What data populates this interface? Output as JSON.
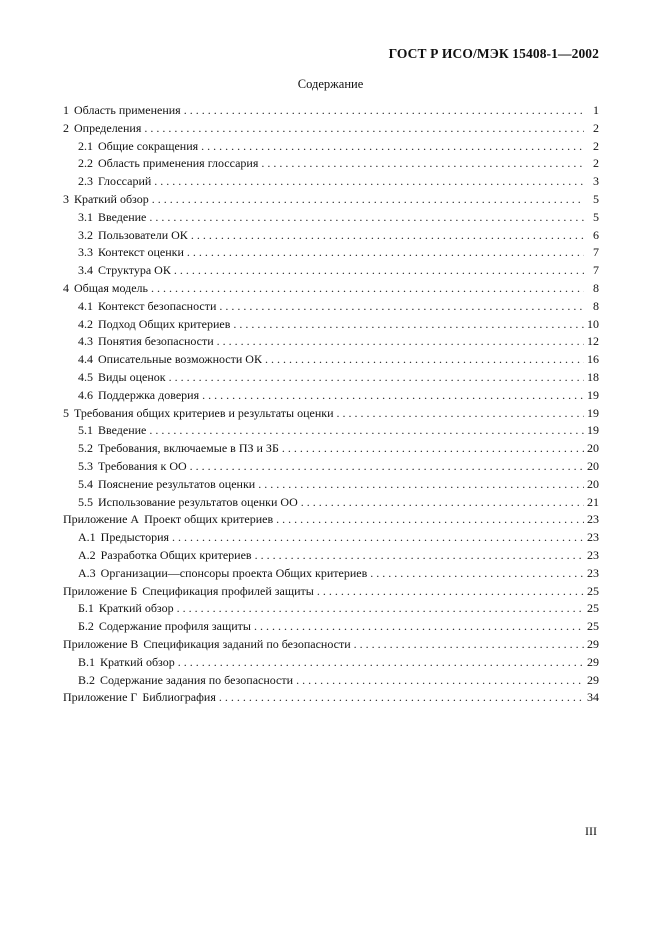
{
  "header": "ГОСТ Р ИСО/МЭК 15408-1—2002",
  "title": "Содержание",
  "toc": [
    {
      "num": "1",
      "label": "Область применения",
      "page": "1",
      "level": 0
    },
    {
      "num": "2",
      "label": "Определения",
      "page": "2",
      "level": 0
    },
    {
      "num": "2.1",
      "label": "Общие сокращения",
      "page": "2",
      "level": 1
    },
    {
      "num": "2.2",
      "label": "Область применения глоссария",
      "page": "2",
      "level": 1
    },
    {
      "num": "2.3",
      "label": "Глоссарий",
      "page": "3",
      "level": 1
    },
    {
      "num": "3",
      "label": "Краткий обзор",
      "page": "5",
      "level": 0
    },
    {
      "num": "3.1",
      "label": "Введение",
      "page": "5",
      "level": 1
    },
    {
      "num": "3.2",
      "label": "Пользователи ОК",
      "page": "6",
      "level": 1
    },
    {
      "num": "3.3",
      "label": "Контекст оценки",
      "page": "7",
      "level": 1
    },
    {
      "num": "3.4",
      "label": "Структура ОК",
      "page": "7",
      "level": 1
    },
    {
      "num": "4",
      "label": "Общая модель",
      "page": "8",
      "level": 0
    },
    {
      "num": "4.1",
      "label": "Контекст безопасности",
      "page": "8",
      "level": 1
    },
    {
      "num": "4.2",
      "label": "Подход Общих критериев",
      "page": "10",
      "level": 1
    },
    {
      "num": "4.3",
      "label": "Понятия безопасности",
      "page": "12",
      "level": 1
    },
    {
      "num": "4.4",
      "label": "Описательные возможности ОК",
      "page": "16",
      "level": 1
    },
    {
      "num": "4.5",
      "label": "Виды оценок",
      "page": "18",
      "level": 1
    },
    {
      "num": "4.6",
      "label": "Поддержка доверия",
      "page": "19",
      "level": 1
    },
    {
      "num": "5",
      "label": "Требования общих критериев и результаты оценки",
      "page": "19",
      "level": 0
    },
    {
      "num": "5.1",
      "label": "Введение",
      "page": "19",
      "level": 1
    },
    {
      "num": "5.2",
      "label": "Требования, включаемые в ПЗ и ЗБ",
      "page": "20",
      "level": 1
    },
    {
      "num": "5.3",
      "label": "Требования к ОО",
      "page": "20",
      "level": 1
    },
    {
      "num": "5.4",
      "label": "Пояснение результатов оценки",
      "page": "20",
      "level": 1
    },
    {
      "num": "5.5",
      "label": "Использование результатов оценки ОО",
      "page": "21",
      "level": 1
    },
    {
      "num": "Приложение А",
      "label": "Проект общих критериев",
      "page": "23",
      "level": 0
    },
    {
      "num": "А.1",
      "label": "Предыстория",
      "page": "23",
      "level": 1
    },
    {
      "num": "А.2",
      "label": "Разработка Общих критериев",
      "page": "23",
      "level": 1
    },
    {
      "num": "А.3",
      "label": "Организации—спонсоры проекта Общих критериев",
      "page": "23",
      "level": 1
    },
    {
      "num": "Приложение Б",
      "label": "Спецификация профилей защиты",
      "page": "25",
      "level": 0
    },
    {
      "num": "Б.1",
      "label": "Краткий обзор",
      "page": "25",
      "level": 1
    },
    {
      "num": "Б.2",
      "label": "Содержание профиля защиты",
      "page": "25",
      "level": 1
    },
    {
      "num": "Приложение В",
      "label": "Спецификация заданий по безопасности",
      "page": "29",
      "level": 0
    },
    {
      "num": "В.1",
      "label": "Краткий обзор",
      "page": "29",
      "level": 1
    },
    {
      "num": "В.2",
      "label": "Содержание задания по безопасности",
      "page": "29",
      "level": 1
    },
    {
      "num": "Приложение Г",
      "label": "Библиография",
      "page": "34",
      "level": 0
    }
  ],
  "footer_page": "III"
}
